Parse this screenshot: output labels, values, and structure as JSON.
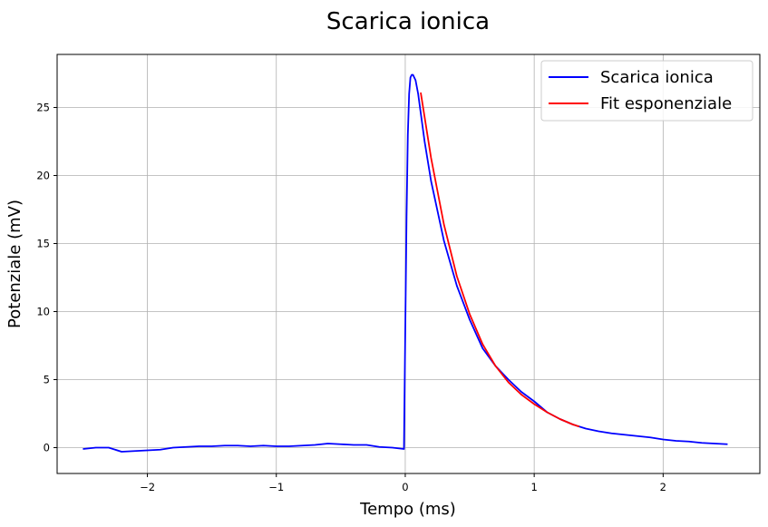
{
  "chart_data": {
    "type": "line",
    "title": "Scarica ionica",
    "xlabel": "Tempo (ms)",
    "ylabel": "Potenziale (mV)",
    "xlim": [
      -2.7,
      2.75
    ],
    "ylim": [
      -1.9,
      28.9
    ],
    "xticks": [
      -2,
      -1,
      0,
      1,
      2
    ],
    "yticks": [
      0,
      5,
      10,
      15,
      20,
      25
    ],
    "grid": true,
    "legend_position": "top-right",
    "series": [
      {
        "name": "Scarica ionica",
        "color": "#0000ff",
        "x": [
          -2.5,
          -2.4,
          -2.3,
          -2.2,
          -2.1,
          -2.0,
          -1.9,
          -1.8,
          -1.7,
          -1.6,
          -1.5,
          -1.4,
          -1.3,
          -1.2,
          -1.1,
          -1.0,
          -0.9,
          -0.8,
          -0.7,
          -0.6,
          -0.5,
          -0.4,
          -0.3,
          -0.2,
          -0.1,
          -0.01,
          0.0,
          0.01,
          0.02,
          0.03,
          0.04,
          0.05,
          0.06,
          0.08,
          0.1,
          0.15,
          0.2,
          0.3,
          0.4,
          0.5,
          0.6,
          0.7,
          0.8,
          0.9,
          1.0,
          1.1,
          1.2,
          1.3,
          1.4,
          1.5,
          1.6,
          1.7,
          1.8,
          1.9,
          2.0,
          2.1,
          2.2,
          2.3,
          2.4,
          2.5
        ],
        "y": [
          -0.1,
          0.0,
          0.0,
          -0.3,
          -0.25,
          -0.2,
          -0.15,
          0.0,
          0.05,
          0.1,
          0.1,
          0.15,
          0.15,
          0.1,
          0.15,
          0.1,
          0.1,
          0.15,
          0.2,
          0.3,
          0.25,
          0.2,
          0.2,
          0.05,
          0.0,
          -0.1,
          8.5,
          17.0,
          23.0,
          26.0,
          27.2,
          27.4,
          27.4,
          27.0,
          26.0,
          22.5,
          19.6,
          15.2,
          11.9,
          9.4,
          7.3,
          6.0,
          5.0,
          4.1,
          3.4,
          2.6,
          2.1,
          1.7,
          1.4,
          1.2,
          1.05,
          0.95,
          0.85,
          0.75,
          0.6,
          0.5,
          0.45,
          0.35,
          0.3,
          0.25
        ]
      },
      {
        "name": "Fit esponenziale",
        "color": "#ff0000",
        "x": [
          0.12,
          0.2,
          0.3,
          0.4,
          0.5,
          0.6,
          0.7,
          0.8,
          0.9,
          1.0,
          1.1,
          1.2,
          1.3,
          1.35
        ],
        "y": [
          26.1,
          21.3,
          16.4,
          12.6,
          9.8,
          7.6,
          6.0,
          4.8,
          3.9,
          3.2,
          2.6,
          2.1,
          1.7,
          1.55
        ]
      }
    ]
  }
}
